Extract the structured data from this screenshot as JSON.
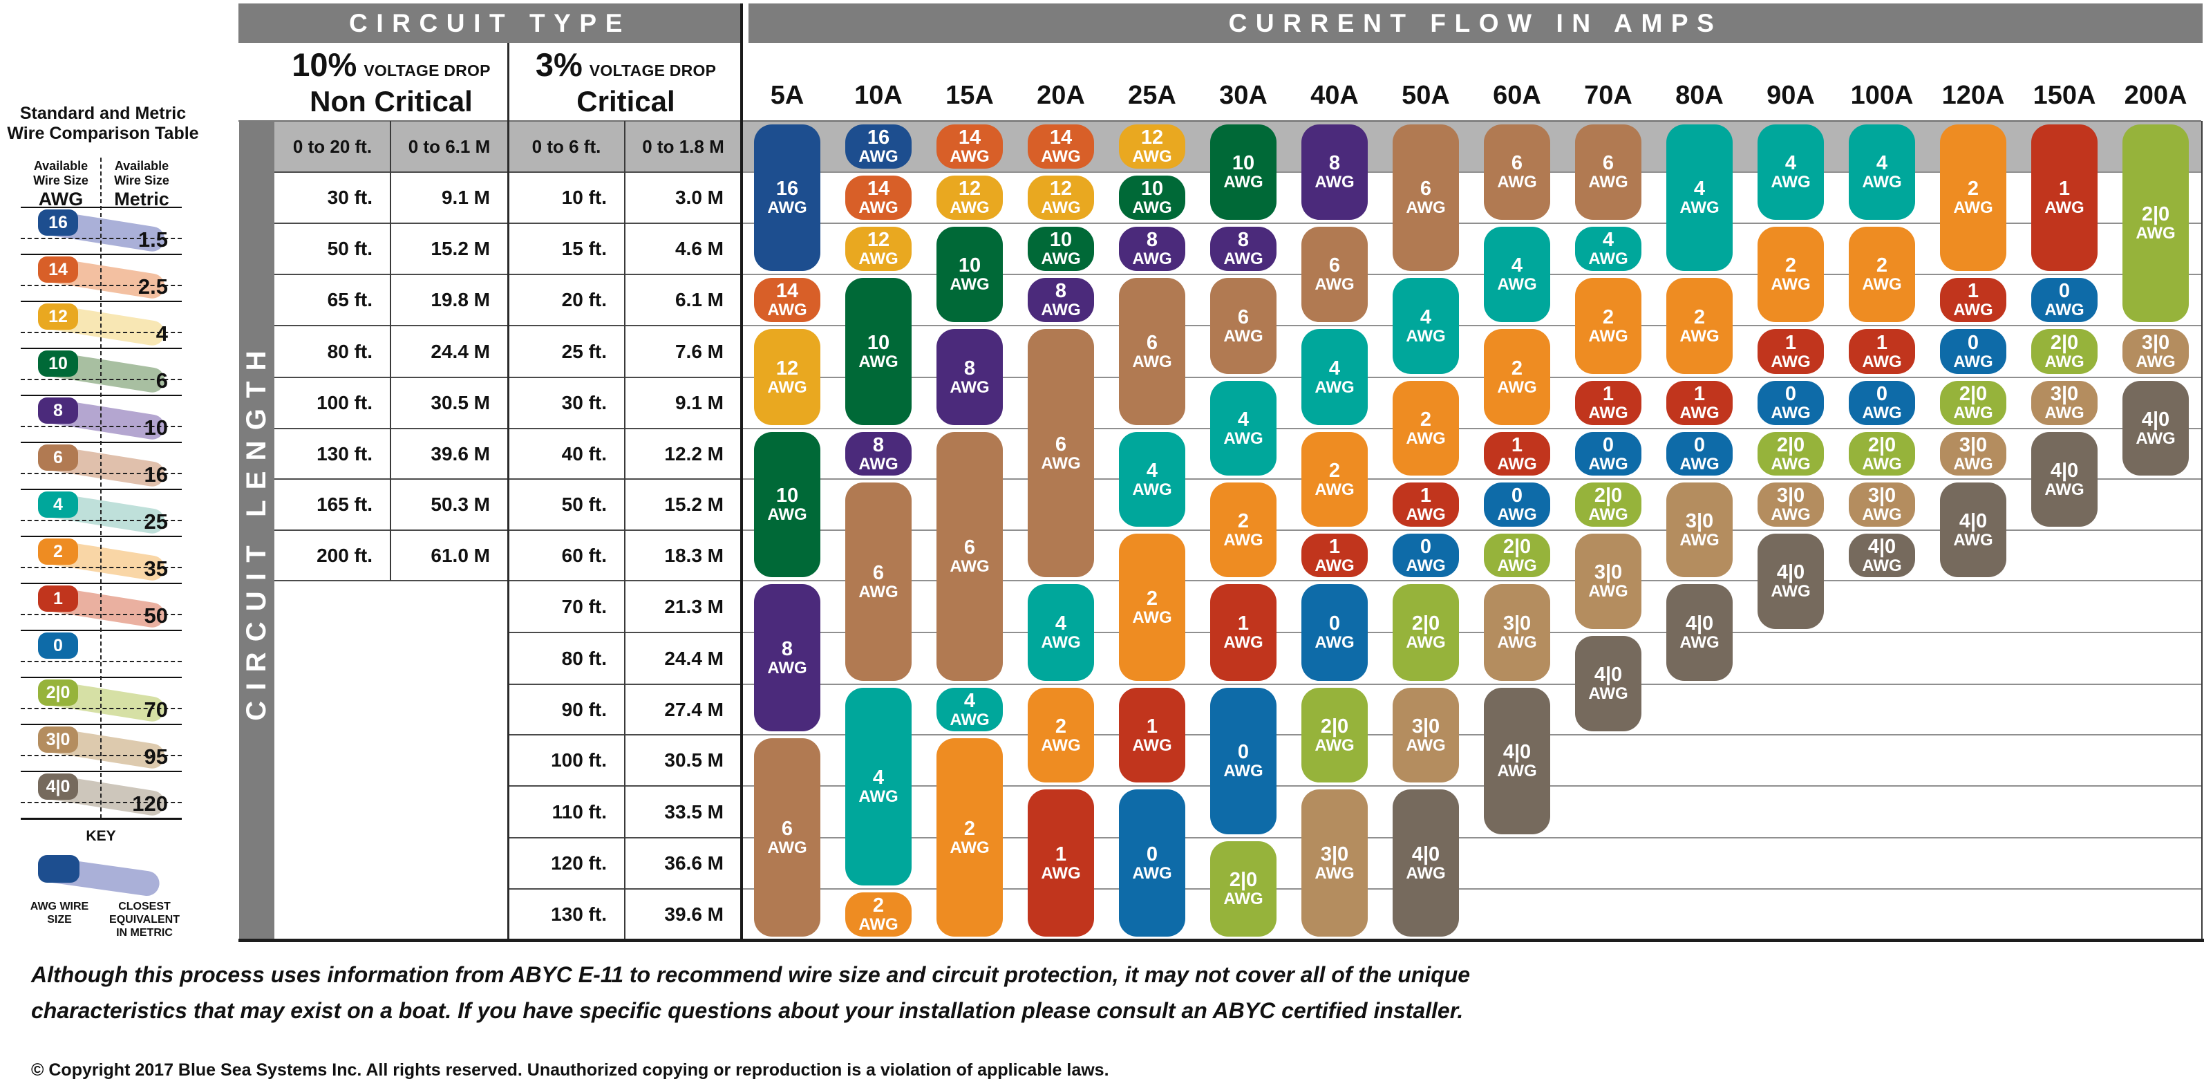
{
  "header": {
    "circuit_type": "CIRCUIT TYPE",
    "current_flow_in_amps": "CURRENT FLOW IN AMPS",
    "non_critical": {
      "pct": "10%",
      "drop": "VOLTAGE DROP",
      "name": "Non Critical"
    },
    "critical": {
      "pct": "3%",
      "drop": "VOLTAGE DROP",
      "name": "Critical"
    },
    "circuit_length": "CIRCUIT LENGTH"
  },
  "sidebar": {
    "title_line1": "Standard and Metric",
    "title_line2": "Wire Comparison Table",
    "awg_col": {
      "label_line1": "Available",
      "label_line2": "Wire Size",
      "unit": "AWG"
    },
    "metric_col": {
      "label_line1": "Available",
      "label_line2": "Wire Size",
      "unit": "Metric"
    },
    "rows": [
      {
        "awg": "16",
        "metric": "1.5"
      },
      {
        "awg": "14",
        "metric": "2.5"
      },
      {
        "awg": "12",
        "metric": "4"
      },
      {
        "awg": "10",
        "metric": "6"
      },
      {
        "awg": "8",
        "metric": "10"
      },
      {
        "awg": "6",
        "metric": "16"
      },
      {
        "awg": "4",
        "metric": "25"
      },
      {
        "awg": "2",
        "metric": "35"
      },
      {
        "awg": "1",
        "metric": "50"
      },
      {
        "awg": "0",
        "metric": ""
      },
      {
        "awg": "2|0",
        "metric": "70"
      },
      {
        "awg": "3|0",
        "metric": "95"
      },
      {
        "awg": "4|0",
        "metric": "120"
      }
    ],
    "key": {
      "title": "KEY",
      "awg_label": "AWG WIRE SIZE",
      "metric_label": "CLOSEST EQUIVALENT IN METRIC"
    }
  },
  "chart_data": {
    "type": "table",
    "title": "CURRENT FLOW IN AMPS",
    "xlabel": "Current flow in amps",
    "ylabel": "Circuit length",
    "pill_unit": "AWG",
    "rows": [
      {
        "ft10": "0 to 20 ft.",
        "m10": "0 to 6.1 M",
        "ft3": "0 to 6 ft.",
        "m3": "0 to 1.8 M"
      },
      {
        "ft10": "30 ft.",
        "m10": "9.1 M",
        "ft3": "10 ft.",
        "m3": "3.0 M"
      },
      {
        "ft10": "50 ft.",
        "m10": "15.2 M",
        "ft3": "15 ft.",
        "m3": "4.6 M"
      },
      {
        "ft10": "65 ft.",
        "m10": "19.8 M",
        "ft3": "20 ft.",
        "m3": "6.1 M"
      },
      {
        "ft10": "80 ft.",
        "m10": "24.4 M",
        "ft3": "25 ft.",
        "m3": "7.6 M"
      },
      {
        "ft10": "100 ft.",
        "m10": "30.5 M",
        "ft3": "30 ft.",
        "m3": "9.1 M"
      },
      {
        "ft10": "130 ft.",
        "m10": "39.6 M",
        "ft3": "40 ft.",
        "m3": "12.2 M"
      },
      {
        "ft10": "165 ft.",
        "m10": "50.3 M",
        "ft3": "50 ft.",
        "m3": "15.2 M"
      },
      {
        "ft10": "200 ft.",
        "m10": "61.0 M",
        "ft3": "60 ft.",
        "m3": "18.3 M"
      },
      {
        "ft10": "",
        "m10": "",
        "ft3": "70 ft.",
        "m3": "21.3 M"
      },
      {
        "ft10": "",
        "m10": "",
        "ft3": "80 ft.",
        "m3": "24.4 M"
      },
      {
        "ft10": "",
        "m10": "",
        "ft3": "90 ft.",
        "m3": "27.4 M"
      },
      {
        "ft10": "",
        "m10": "",
        "ft3": "100 ft.",
        "m3": "30.5 M"
      },
      {
        "ft10": "",
        "m10": "",
        "ft3": "110 ft.",
        "m3": "33.5 M"
      },
      {
        "ft10": "",
        "m10": "",
        "ft3": "120 ft.",
        "m3": "36.6 M"
      },
      {
        "ft10": "",
        "m10": "",
        "ft3": "130 ft.",
        "m3": "39.6 M"
      }
    ],
    "columns": [
      {
        "amps": "5A",
        "segments": [
          {
            "awg": "16",
            "from": 1,
            "to": 3
          },
          {
            "awg": "14",
            "from": 4,
            "to": 4
          },
          {
            "awg": "12",
            "from": 5,
            "to": 6
          },
          {
            "awg": "10",
            "from": 7,
            "to": 9
          },
          {
            "awg": "8",
            "from": 10,
            "to": 12
          },
          {
            "awg": "6",
            "from": 13,
            "to": 16
          }
        ]
      },
      {
        "amps": "10A",
        "segments": [
          {
            "awg": "16",
            "from": 1,
            "to": 1
          },
          {
            "awg": "14",
            "from": 2,
            "to": 2
          },
          {
            "awg": "12",
            "from": 3,
            "to": 3
          },
          {
            "awg": "10",
            "from": 4,
            "to": 6
          },
          {
            "awg": "8",
            "from": 7,
            "to": 7
          },
          {
            "awg": "6",
            "from": 8,
            "to": 11
          },
          {
            "awg": "4",
            "from": 12,
            "to": 15
          },
          {
            "awg": "2",
            "from": 16,
            "to": 16
          }
        ]
      },
      {
        "amps": "15A",
        "segments": [
          {
            "awg": "14",
            "from": 1,
            "to": 1
          },
          {
            "awg": "12",
            "from": 2,
            "to": 2
          },
          {
            "awg": "10",
            "from": 3,
            "to": 4
          },
          {
            "awg": "8",
            "from": 5,
            "to": 6
          },
          {
            "awg": "6",
            "from": 7,
            "to": 11
          },
          {
            "awg": "4",
            "from": 12,
            "to": 12
          },
          {
            "awg": "2",
            "from": 13,
            "to": 16
          }
        ]
      },
      {
        "amps": "20A",
        "segments": [
          {
            "awg": "14",
            "from": 1,
            "to": 1
          },
          {
            "awg": "12",
            "from": 2,
            "to": 2
          },
          {
            "awg": "10",
            "from": 3,
            "to": 3
          },
          {
            "awg": "8",
            "from": 4,
            "to": 4
          },
          {
            "awg": "6",
            "from": 5,
            "to": 9
          },
          {
            "awg": "4",
            "from": 10,
            "to": 11
          },
          {
            "awg": "2",
            "from": 12,
            "to": 13
          },
          {
            "awg": "1",
            "from": 14,
            "to": 16
          }
        ]
      },
      {
        "amps": "25A",
        "segments": [
          {
            "awg": "12",
            "from": 1,
            "to": 1
          },
          {
            "awg": "10",
            "from": 2,
            "to": 2
          },
          {
            "awg": "8",
            "from": 3,
            "to": 3
          },
          {
            "awg": "6",
            "from": 4,
            "to": 6
          },
          {
            "awg": "4",
            "from": 7,
            "to": 8
          },
          {
            "awg": "2",
            "from": 9,
            "to": 11
          },
          {
            "awg": "1",
            "from": 12,
            "to": 13
          },
          {
            "awg": "0",
            "from": 14,
            "to": 16
          }
        ]
      },
      {
        "amps": "30A",
        "segments": [
          {
            "awg": "10",
            "from": 1,
            "to": 2
          },
          {
            "awg": "8",
            "from": 3,
            "to": 3
          },
          {
            "awg": "6",
            "from": 4,
            "to": 5
          },
          {
            "awg": "4",
            "from": 6,
            "to": 7
          },
          {
            "awg": "2",
            "from": 8,
            "to": 9
          },
          {
            "awg": "1",
            "from": 10,
            "to": 11
          },
          {
            "awg": "0",
            "from": 12,
            "to": 14
          },
          {
            "awg": "2|0",
            "from": 15,
            "to": 16
          }
        ]
      },
      {
        "amps": "40A",
        "segments": [
          {
            "awg": "8",
            "from": 1,
            "to": 2
          },
          {
            "awg": "6",
            "from": 3,
            "to": 4
          },
          {
            "awg": "4",
            "from": 5,
            "to": 6
          },
          {
            "awg": "2",
            "from": 7,
            "to": 8
          },
          {
            "awg": "1",
            "from": 9,
            "to": 9
          },
          {
            "awg": "0",
            "from": 10,
            "to": 11
          },
          {
            "awg": "2|0",
            "from": 12,
            "to": 13
          },
          {
            "awg": "3|0",
            "from": 14,
            "to": 16
          }
        ]
      },
      {
        "amps": "50A",
        "segments": [
          {
            "awg": "6",
            "from": 1,
            "to": 3
          },
          {
            "awg": "4",
            "from": 4,
            "to": 5
          },
          {
            "awg": "2",
            "from": 6,
            "to": 7
          },
          {
            "awg": "1",
            "from": 8,
            "to": 8
          },
          {
            "awg": "0",
            "from": 9,
            "to": 9
          },
          {
            "awg": "2|0",
            "from": 10,
            "to": 11
          },
          {
            "awg": "3|0",
            "from": 12,
            "to": 13
          },
          {
            "awg": "4|0",
            "from": 14,
            "to": 16
          }
        ]
      },
      {
        "amps": "60A",
        "segments": [
          {
            "awg": "6",
            "from": 1,
            "to": 2
          },
          {
            "awg": "4",
            "from": 3,
            "to": 4
          },
          {
            "awg": "2",
            "from": 5,
            "to": 6
          },
          {
            "awg": "1",
            "from": 7,
            "to": 7
          },
          {
            "awg": "0",
            "from": 8,
            "to": 8
          },
          {
            "awg": "2|0",
            "from": 9,
            "to": 9
          },
          {
            "awg": "3|0",
            "from": 10,
            "to": 11
          },
          {
            "awg": "4|0",
            "from": 12,
            "to": 14
          }
        ]
      },
      {
        "amps": "70A",
        "segments": [
          {
            "awg": "6",
            "from": 1,
            "to": 2
          },
          {
            "awg": "4",
            "from": 3,
            "to": 3
          },
          {
            "awg": "2",
            "from": 4,
            "to": 5
          },
          {
            "awg": "1",
            "from": 6,
            "to": 6
          },
          {
            "awg": "0",
            "from": 7,
            "to": 7
          },
          {
            "awg": "2|0",
            "from": 8,
            "to": 8
          },
          {
            "awg": "3|0",
            "from": 9,
            "to": 10
          },
          {
            "awg": "4|0",
            "from": 11,
            "to": 12
          }
        ]
      },
      {
        "amps": "80A",
        "segments": [
          {
            "awg": "4",
            "from": 1,
            "to": 3
          },
          {
            "awg": "2",
            "from": 4,
            "to": 5
          },
          {
            "awg": "1",
            "from": 6,
            "to": 6
          },
          {
            "awg": "0",
            "from": 7,
            "to": 7
          },
          {
            "awg": "3|0",
            "from": 8,
            "to": 9
          },
          {
            "awg": "4|0",
            "from": 10,
            "to": 11
          }
        ]
      },
      {
        "amps": "90A",
        "segments": [
          {
            "awg": "4",
            "from": 1,
            "to": 2
          },
          {
            "awg": "2",
            "from": 3,
            "to": 4
          },
          {
            "awg": "1",
            "from": 5,
            "to": 5
          },
          {
            "awg": "0",
            "from": 6,
            "to": 6
          },
          {
            "awg": "2|0",
            "from": 7,
            "to": 7
          },
          {
            "awg": "3|0",
            "from": 8,
            "to": 8
          },
          {
            "awg": "4|0",
            "from": 9,
            "to": 10
          }
        ]
      },
      {
        "amps": "100A",
        "segments": [
          {
            "awg": "4",
            "from": 1,
            "to": 2
          },
          {
            "awg": "2",
            "from": 3,
            "to": 4
          },
          {
            "awg": "1",
            "from": 5,
            "to": 5
          },
          {
            "awg": "0",
            "from": 6,
            "to": 6
          },
          {
            "awg": "2|0",
            "from": 7,
            "to": 7
          },
          {
            "awg": "3|0",
            "from": 8,
            "to": 8
          },
          {
            "awg": "4|0",
            "from": 9,
            "to": 9
          }
        ]
      },
      {
        "amps": "120A",
        "segments": [
          {
            "awg": "2",
            "from": 1,
            "to": 3
          },
          {
            "awg": "1",
            "from": 4,
            "to": 4
          },
          {
            "awg": "0",
            "from": 5,
            "to": 5
          },
          {
            "awg": "2|0",
            "from": 6,
            "to": 6
          },
          {
            "awg": "3|0",
            "from": 7,
            "to": 7
          },
          {
            "awg": "4|0",
            "from": 8,
            "to": 9
          }
        ]
      },
      {
        "amps": "150A",
        "segments": [
          {
            "awg": "1",
            "from": 1,
            "to": 3
          },
          {
            "awg": "0",
            "from": 4,
            "to": 4
          },
          {
            "awg": "2|0",
            "from": 5,
            "to": 5
          },
          {
            "awg": "3|0",
            "from": 6,
            "to": 6
          },
          {
            "awg": "4|0",
            "from": 7,
            "to": 8
          }
        ]
      },
      {
        "amps": "200A",
        "segments": [
          {
            "awg": "2|0",
            "from": 1,
            "to": 4
          },
          {
            "awg": "3|0",
            "from": 5,
            "to": 5
          },
          {
            "awg": "4|0",
            "from": 6,
            "to": 7
          }
        ]
      }
    ]
  },
  "colors": {
    "awg": {
      "16": "#1d4e8f",
      "14": "#d85f28",
      "12": "#e9a820",
      "10": "#006937",
      "8": "#4b2a7b",
      "6": "#b17a52",
      "4": "#00a79b",
      "2": "#ee8c22",
      "1": "#c1351d",
      "0": "#0e6ba8",
      "2|0": "#96b33b",
      "3|0": "#b48d5f",
      "4|0": "#766a5d"
    },
    "trail": {
      "16": "#aab0d8",
      "14": "#f3c0a1",
      "12": "#f8e7b4",
      "10": "#a8bfa1",
      "8": "#b4a6d0",
      "6": "#e0c0ac",
      "4": "#bfe0da",
      "2": "#f9d6a6",
      "1": "#eab0a0",
      "0": "",
      "2|0": "#d6e0a5",
      "3|0": "#ddcaae",
      "4|0": "#cdc6bb"
    },
    "band_gray": "#7d7d7d",
    "row1_gray": "#b4b4b4"
  },
  "footer": {
    "disclaimer_line1": "Although this process uses information from ABYC E-11 to recommend wire size and circuit protection, it may not cover all of the unique",
    "disclaimer_line2": "characteristics that may exist on a boat. If you have specific questions about your installation please consult an ABYC certified installer.",
    "copyright": "© Copyright 2017 Blue Sea Systems Inc. All rights reserved. Unauthorized copying or reproduction is a violation of applicable laws."
  }
}
